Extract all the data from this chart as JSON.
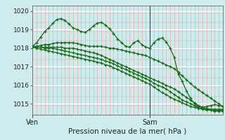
{
  "background_color": "#ceeced",
  "line_color": "#1a6b1a",
  "marker_color": "#1a6b1a",
  "title": "Pression niveau de la mer( hPa )",
  "xlabel_ven": "Ven",
  "xlabel_sam": "Sam",
  "ylim": [
    1014.4,
    1020.3
  ],
  "yticks": [
    1015,
    1016,
    1017,
    1018,
    1019,
    1020
  ],
  "n_points": 48,
  "sam_idx": 29,
  "series": [
    [
      1018.1,
      1018.3,
      1018.6,
      1018.9,
      1019.1,
      1019.35,
      1019.55,
      1019.6,
      1019.5,
      1019.3,
      1019.1,
      1019.0,
      1018.9,
      1018.85,
      1019.0,
      1019.2,
      1019.35,
      1019.4,
      1019.25,
      1019.05,
      1018.8,
      1018.5,
      1018.3,
      1018.1,
      1018.05,
      1018.3,
      1018.4,
      1018.2,
      1018.05,
      1018.0,
      1018.3,
      1018.5,
      1018.55,
      1018.35,
      1018.0,
      1017.5,
      1016.6,
      1016.2,
      1015.7,
      1015.3,
      1015.0,
      1014.85,
      1014.8,
      1014.85,
      1014.9,
      1014.95,
      1014.9,
      1014.85
    ],
    [
      1018.1,
      1018.1,
      1018.15,
      1018.2,
      1018.2,
      1018.25,
      1018.3,
      1018.3,
      1018.3,
      1018.3,
      1018.3,
      1018.25,
      1018.2,
      1018.15,
      1018.1,
      1018.1,
      1018.1,
      1018.1,
      1018.05,
      1018.0,
      1018.0,
      1017.95,
      1017.9,
      1017.85,
      1017.8,
      1017.75,
      1017.7,
      1017.65,
      1017.6,
      1017.5,
      1017.4,
      1017.3,
      1017.2,
      1017.1,
      1017.0,
      1016.9,
      1016.7,
      1016.5,
      1016.3,
      1016.1,
      1015.9,
      1015.75,
      1015.6,
      1015.45,
      1015.3,
      1015.15,
      1015.0,
      1014.85
    ],
    [
      1018.05,
      1018.05,
      1018.05,
      1018.05,
      1018.05,
      1018.05,
      1018.05,
      1018.05,
      1018.0,
      1018.0,
      1018.0,
      1017.95,
      1017.9,
      1017.85,
      1017.8,
      1017.75,
      1017.7,
      1017.6,
      1017.5,
      1017.4,
      1017.3,
      1017.2,
      1017.1,
      1017.0,
      1016.9,
      1016.8,
      1016.7,
      1016.6,
      1016.5,
      1016.4,
      1016.3,
      1016.2,
      1016.1,
      1016.0,
      1015.9,
      1015.8,
      1015.65,
      1015.5,
      1015.35,
      1015.2,
      1015.05,
      1014.9,
      1014.8,
      1014.75,
      1014.7,
      1014.7,
      1014.7,
      1014.7
    ],
    [
      1018.05,
      1018.05,
      1018.05,
      1018.0,
      1018.0,
      1018.0,
      1017.95,
      1017.9,
      1017.85,
      1017.8,
      1017.75,
      1017.7,
      1017.65,
      1017.6,
      1017.55,
      1017.5,
      1017.45,
      1017.4,
      1017.3,
      1017.25,
      1017.15,
      1017.05,
      1016.95,
      1016.85,
      1016.75,
      1016.65,
      1016.55,
      1016.45,
      1016.35,
      1016.25,
      1016.1,
      1016.0,
      1015.9,
      1015.8,
      1015.65,
      1015.5,
      1015.35,
      1015.2,
      1015.1,
      1015.0,
      1014.9,
      1014.8,
      1014.75,
      1014.7,
      1014.65,
      1014.65,
      1014.65,
      1014.65
    ],
    [
      1018.05,
      1018.0,
      1017.95,
      1017.9,
      1017.85,
      1017.8,
      1017.75,
      1017.7,
      1017.65,
      1017.6,
      1017.55,
      1017.5,
      1017.45,
      1017.4,
      1017.35,
      1017.3,
      1017.25,
      1017.2,
      1017.1,
      1017.05,
      1016.95,
      1016.85,
      1016.75,
      1016.65,
      1016.55,
      1016.45,
      1016.35,
      1016.25,
      1016.15,
      1016.05,
      1015.9,
      1015.75,
      1015.6,
      1015.5,
      1015.35,
      1015.25,
      1015.15,
      1015.05,
      1014.95,
      1014.85,
      1014.8,
      1014.75,
      1014.7,
      1014.65,
      1014.65,
      1014.6,
      1014.6,
      1014.6
    ]
  ]
}
